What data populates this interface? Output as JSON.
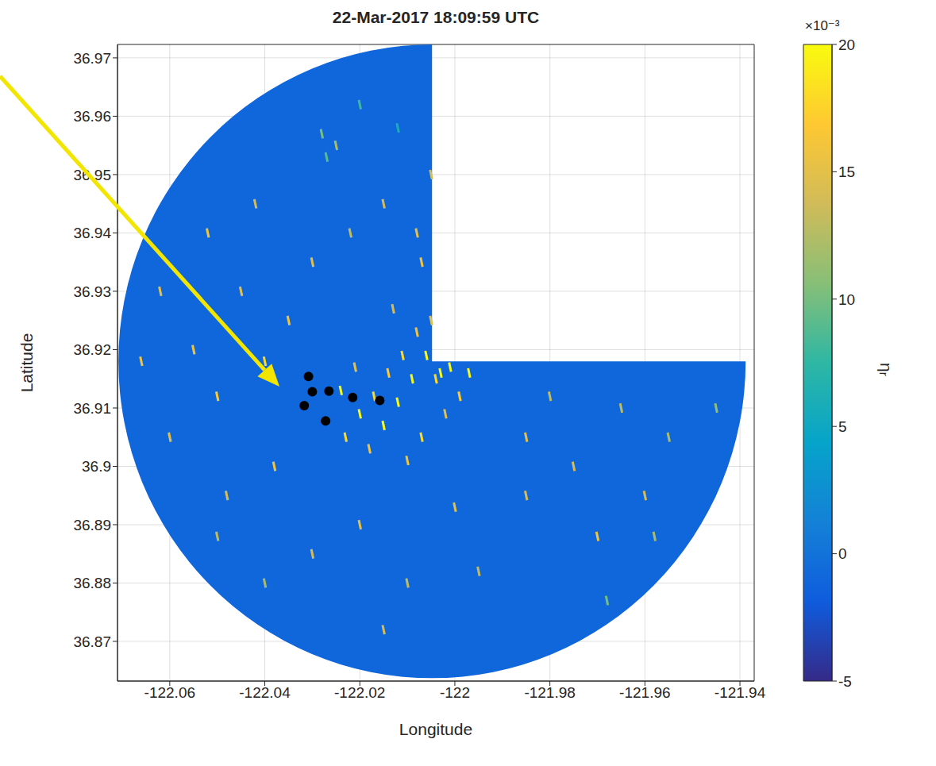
{
  "chart_data": {
    "type": "heatmap",
    "title": "22-Mar-2017 18:09:59 UTC",
    "x_label": "Longitude",
    "y_label": "Latitude",
    "xlim": [
      -122.071,
      -121.937
    ],
    "xticks": [
      -122.06,
      -122.04,
      -122.02,
      -122,
      -121.98,
      -121.96,
      -121.94
    ],
    "ylim": [
      36.8632,
      36.9723
    ],
    "yticks": [
      36.87,
      36.88,
      36.89,
      36.9,
      36.91,
      36.92,
      36.93,
      36.94,
      36.95,
      36.96,
      36.97
    ],
    "grid": true,
    "radar_center": [
      -122.0048,
      36.918
    ],
    "radar_radius": [
      0.066,
      0.0543
    ],
    "background_value": -1,
    "cells": [
      [
        -122.003,
        36.916,
        20
      ],
      [
        -122.001,
        36.917,
        20
      ],
      [
        -122.004,
        36.915,
        18
      ],
      [
        -122.006,
        36.919,
        20
      ],
      [
        -122.008,
        36.923,
        16
      ],
      [
        -122.009,
        36.915,
        20
      ],
      [
        -122.011,
        36.919,
        18
      ],
      [
        -122.012,
        36.911,
        20
      ],
      [
        -122.014,
        36.916,
        17
      ],
      [
        -122.015,
        36.907,
        20
      ],
      [
        -122.017,
        36.912,
        18
      ],
      [
        -122.018,
        36.903,
        16
      ],
      [
        -122.02,
        36.909,
        20
      ],
      [
        -122.021,
        36.917,
        15
      ],
      [
        -122.023,
        36.905,
        18
      ],
      [
        -122.024,
        36.913,
        20
      ],
      [
        -121.999,
        36.912,
        17
      ],
      [
        -121.997,
        36.916,
        20
      ],
      [
        -122.002,
        36.909,
        15
      ],
      [
        -122.007,
        36.905,
        18
      ],
      [
        -122.01,
        36.901,
        16
      ],
      [
        -122.005,
        36.925,
        15
      ],
      [
        -122.013,
        36.927,
        14
      ],
      [
        -122.035,
        36.925,
        16
      ],
      [
        -122.04,
        36.918,
        18
      ],
      [
        -122.045,
        36.93,
        15
      ],
      [
        -122.05,
        36.912,
        17
      ],
      [
        -122.055,
        36.92,
        16
      ],
      [
        -122.06,
        36.905,
        15
      ],
      [
        -122.038,
        36.9,
        16
      ],
      [
        -122.048,
        36.895,
        14
      ],
      [
        -122.03,
        36.935,
        15
      ],
      [
        -122.052,
        36.94,
        16
      ],
      [
        -122.062,
        36.93,
        15
      ],
      [
        -122.042,
        36.945,
        14
      ],
      [
        -122.066,
        36.918,
        16
      ],
      [
        -122.028,
        36.957,
        10
      ],
      [
        -122.025,
        36.955,
        12
      ],
      [
        -122.027,
        36.953,
        9
      ],
      [
        -122.02,
        36.962,
        8
      ],
      [
        -122.012,
        36.958,
        6
      ],
      [
        -122.015,
        36.945,
        14
      ],
      [
        -122.008,
        36.94,
        15
      ],
      [
        -122.022,
        36.94,
        13
      ],
      [
        -122.007,
        36.935,
        16
      ],
      [
        -122.005,
        36.95,
        14
      ],
      [
        -122.03,
        36.885,
        14
      ],
      [
        -122.02,
        36.89,
        15
      ],
      [
        -122.01,
        36.88,
        13
      ],
      [
        -122.0,
        36.893,
        15
      ],
      [
        -122.04,
        36.88,
        12
      ],
      [
        -122.015,
        36.872,
        14
      ],
      [
        -121.995,
        36.882,
        13
      ],
      [
        -121.985,
        36.895,
        14
      ],
      [
        -122.05,
        36.888,
        13
      ],
      [
        -121.985,
        36.905,
        15
      ],
      [
        -121.975,
        36.9,
        14
      ],
      [
        -121.965,
        36.91,
        13
      ],
      [
        -121.955,
        36.905,
        12
      ],
      [
        -121.96,
        36.895,
        14
      ],
      [
        -121.97,
        36.888,
        16
      ],
      [
        -121.98,
        36.912,
        13
      ],
      [
        -121.958,
        36.888,
        12
      ],
      [
        -121.968,
        36.877,
        10
      ],
      [
        -121.945,
        36.91,
        11
      ]
    ],
    "markers": {
      "color": "#000000",
      "marker": "circle",
      "x": [
        -122.0308,
        -122.03,
        -122.0265,
        -122.0215,
        -122.0158,
        -122.0317,
        -122.0272
      ],
      "y": [
        36.9154,
        36.9128,
        36.9129,
        36.9118,
        36.9113,
        36.9104,
        36.9078
      ]
    },
    "colorbar": {
      "label": "ηᵣ",
      "multiplier": "×10⁻³",
      "range": [
        -5,
        20
      ],
      "ticks": [
        -5,
        0,
        5,
        10,
        15,
        20
      ]
    }
  }
}
